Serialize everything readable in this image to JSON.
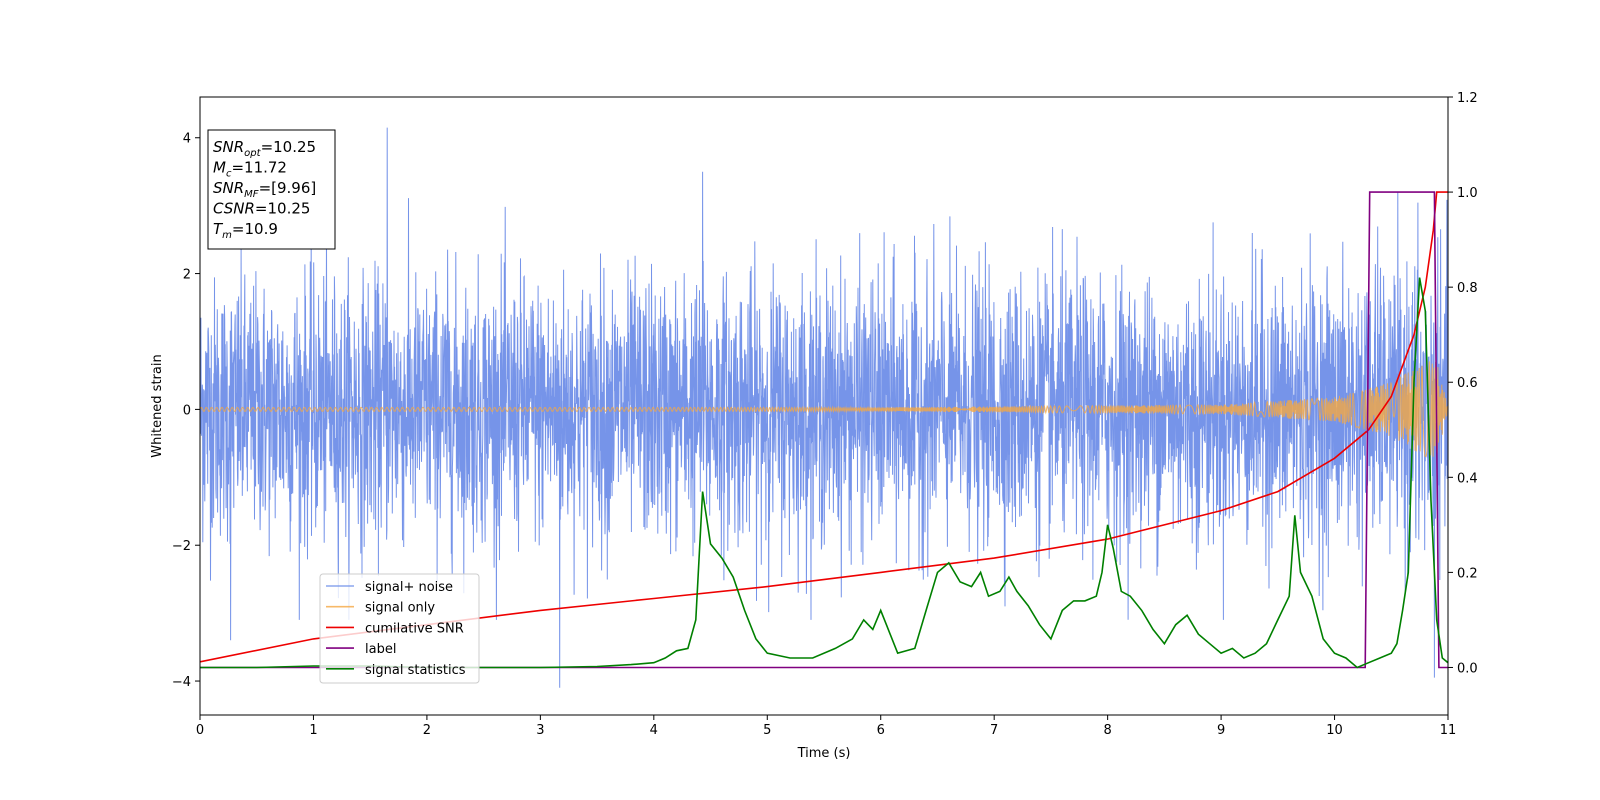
{
  "chart_data": {
    "type": "line",
    "xlabel": "Time (s)",
    "ylabel": "Whitened strain",
    "xlim": [
      0,
      11
    ],
    "ylim_left": [
      -4.5,
      4.6
    ],
    "ylim_right": [
      -0.1,
      1.2
    ],
    "x_ticks": [
      0,
      1,
      2,
      3,
      4,
      5,
      6,
      7,
      8,
      9,
      10,
      11
    ],
    "y_ticks_left": [
      -4,
      -2,
      0,
      2,
      4
    ],
    "y_ticks_right": [
      0.0,
      0.2,
      0.4,
      0.6,
      0.8,
      1.0,
      1.2
    ],
    "grid": false,
    "legend_position": "lower-left",
    "info_box": {
      "position": "upper-left",
      "lines": [
        {
          "name": "SNR",
          "sub": "opt",
          "value": "=10.25"
        },
        {
          "name": "M",
          "sub": "c",
          "value": "=11.72"
        },
        {
          "name": "SNR",
          "sub": "MF",
          "value": "=[9.96]"
        },
        {
          "name": "CSNR",
          "sub": "",
          "value": "=10.25"
        },
        {
          "name": "T",
          "sub": "m",
          "value": "=10.9"
        }
      ]
    },
    "series": [
      {
        "name": "signal+ noise",
        "color": "#6f8ee8",
        "axis": "left",
        "kind": "noise_band",
        "typical_range": [
          -2.0,
          2.0
        ],
        "notable_extremes": [
          [
            1.65,
            4.15
          ],
          [
            3.17,
            -4.1
          ],
          [
            10.88,
            -3.95
          ],
          [
            0.27,
            -3.4
          ],
          [
            4.43,
            3.5
          ]
        ]
      },
      {
        "name": "signal only",
        "color": "#f5a742",
        "axis": "left",
        "kind": "chirp_envelope",
        "envelope": {
          "t": [
            0,
            6.0,
            9.0,
            10.0,
            10.5,
            10.8,
            10.9,
            11.0
          ],
          "amp": [
            0.03,
            0.03,
            0.07,
            0.18,
            0.4,
            0.7,
            0.72,
            0.02
          ]
        }
      },
      {
        "name": "cumilative SNR",
        "color": "#ee0000",
        "axis": "right",
        "x": [
          0,
          1,
          2,
          3,
          4,
          5,
          6,
          7,
          8,
          9,
          9.5,
          10.0,
          10.3,
          10.5,
          10.7,
          10.8,
          10.87,
          10.9,
          11.0
        ],
        "y": [
          0.012,
          0.06,
          0.09,
          0.12,
          0.145,
          0.17,
          0.2,
          0.23,
          0.27,
          0.33,
          0.37,
          0.44,
          0.5,
          0.57,
          0.7,
          0.8,
          0.92,
          1.0,
          1.0
        ]
      },
      {
        "name": "label",
        "color": "#800080",
        "axis": "right",
        "x": [
          0,
          10.27,
          10.31,
          10.88,
          10.92,
          11.0
        ],
        "y": [
          0,
          0,
          1,
          1,
          0,
          0
        ]
      },
      {
        "name": "signal statistics",
        "color": "#008000",
        "axis": "right",
        "x": [
          0,
          0.5,
          1.0,
          1.5,
          2.0,
          2.5,
          3.0,
          3.5,
          3.8,
          4.0,
          4.1,
          4.2,
          4.3,
          4.37,
          4.43,
          4.5,
          4.6,
          4.7,
          4.8,
          4.9,
          5.0,
          5.2,
          5.4,
          5.6,
          5.75,
          5.85,
          5.93,
          6.0,
          6.05,
          6.15,
          6.3,
          6.4,
          6.5,
          6.6,
          6.7,
          6.8,
          6.88,
          6.95,
          7.05,
          7.13,
          7.2,
          7.3,
          7.4,
          7.5,
          7.6,
          7.7,
          7.8,
          7.9,
          7.95,
          8.0,
          8.05,
          8.12,
          8.2,
          8.3,
          8.4,
          8.5,
          8.6,
          8.7,
          8.8,
          8.9,
          9.0,
          9.1,
          9.2,
          9.3,
          9.4,
          9.5,
          9.6,
          9.65,
          9.7,
          9.8,
          9.9,
          10.0,
          10.1,
          10.2,
          10.3,
          10.4,
          10.5,
          10.55,
          10.6,
          10.65,
          10.7,
          10.75,
          10.8,
          10.85,
          10.9,
          10.95,
          11.0
        ],
        "y": [
          0.0,
          0.0,
          0.003,
          0.003,
          0.0,
          0.0,
          0.0,
          0.002,
          0.006,
          0.01,
          0.02,
          0.035,
          0.04,
          0.1,
          0.37,
          0.26,
          0.23,
          0.19,
          0.12,
          0.06,
          0.03,
          0.02,
          0.02,
          0.04,
          0.06,
          0.1,
          0.08,
          0.12,
          0.09,
          0.03,
          0.04,
          0.12,
          0.2,
          0.22,
          0.18,
          0.17,
          0.2,
          0.15,
          0.16,
          0.19,
          0.16,
          0.13,
          0.09,
          0.06,
          0.12,
          0.14,
          0.14,
          0.15,
          0.2,
          0.3,
          0.25,
          0.16,
          0.15,
          0.12,
          0.08,
          0.05,
          0.09,
          0.11,
          0.07,
          0.05,
          0.03,
          0.04,
          0.02,
          0.03,
          0.05,
          0.1,
          0.15,
          0.32,
          0.2,
          0.15,
          0.06,
          0.03,
          0.02,
          0.0,
          0.01,
          0.02,
          0.03,
          0.05,
          0.12,
          0.2,
          0.6,
          0.82,
          0.75,
          0.35,
          0.1,
          0.02,
          0.01
        ]
      }
    ]
  }
}
